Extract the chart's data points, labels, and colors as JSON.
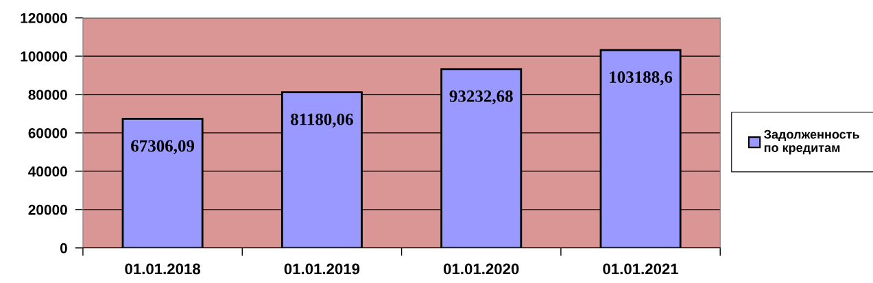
{
  "chart_data": {
    "type": "bar",
    "categories": [
      "01.01.2018",
      "01.01.2019",
      "01.01.2020",
      "01.01.2021"
    ],
    "series": [
      {
        "name": "Задолженность\nпо кредитам",
        "color": "#9999ff",
        "values": [
          67306.09,
          81180.06,
          93232.68,
          103188.6
        ],
        "value_labels": [
          "67306,09",
          "81180,06",
          "93232,68",
          "103188,6"
        ]
      }
    ],
    "ylim": [
      0,
      120000
    ],
    "yticks": [
      0,
      20000,
      40000,
      60000,
      80000,
      100000,
      120000
    ],
    "grid": "y",
    "legend": "right"
  }
}
